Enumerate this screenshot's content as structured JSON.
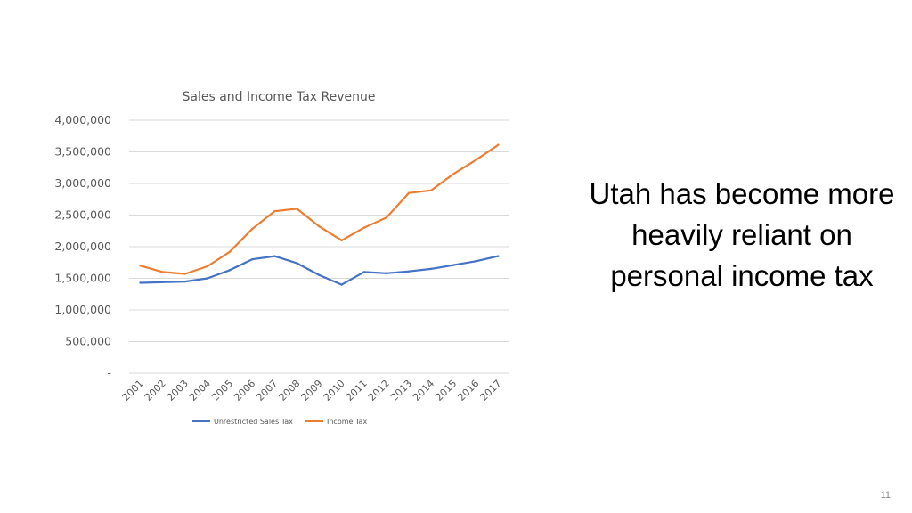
{
  "slide": {
    "headline": "Utah has become more heavily reliant on personal income tax",
    "page_number": "11"
  },
  "chart_data": {
    "type": "line",
    "title": "Sales and Income Tax Revenue",
    "xlabel": "",
    "ylabel": "",
    "ylim": [
      0,
      4000000
    ],
    "y_ticks": [
      0,
      500000,
      1000000,
      1500000,
      2000000,
      2500000,
      3000000,
      3500000,
      4000000
    ],
    "y_tick_labels": [
      "-",
      "500,000",
      "1,000,000",
      "1,500,000",
      "2,000,000",
      "2,500,000",
      "3,000,000",
      "3,500,000",
      "4,000,000"
    ],
    "categories": [
      "2001",
      "2002",
      "2003",
      "2004",
      "2005",
      "2006",
      "2007",
      "2008",
      "2009",
      "2010",
      "2011",
      "2012",
      "2013",
      "2014",
      "2015",
      "2016",
      "2017"
    ],
    "grid": true,
    "legend_position": "bottom",
    "series": [
      {
        "name": "Unrestricted Sales Tax",
        "color": "#4472c4",
        "values": [
          1430000,
          1440000,
          1450000,
          1500000,
          1630000,
          1800000,
          1850000,
          1740000,
          1550000,
          1400000,
          1600000,
          1580000,
          1610000,
          1650000,
          1710000,
          1770000,
          1850000
        ]
      },
      {
        "name": "Income Tax",
        "color": "#ed7d31",
        "values": [
          1700000,
          1600000,
          1570000,
          1690000,
          1920000,
          2280000,
          2560000,
          2600000,
          2320000,
          2100000,
          2300000,
          2460000,
          2850000,
          2890000,
          3150000,
          3370000,
          3610000
        ]
      }
    ]
  }
}
